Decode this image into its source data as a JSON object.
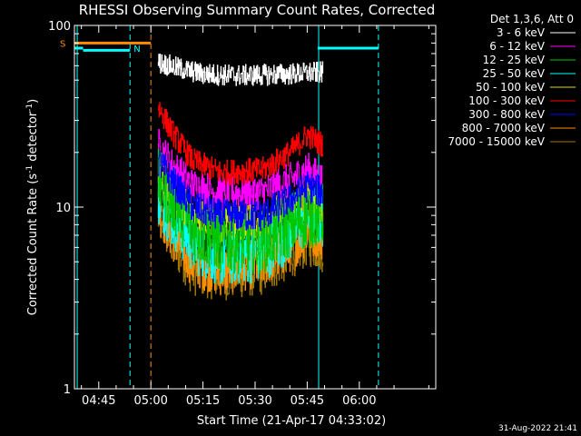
{
  "chart_data": {
    "type": "line",
    "title": "RHESSI Observing Summary Count Rates, Corrected",
    "xlabel": "Start Time (21-Apr-17 04:33:02)",
    "ylabel": "Corrected Count Rate (s",
    "ylabel_sup1": "-1",
    "ylabel_mid": " detector",
    "ylabel_sup2": "-1",
    "ylabel_end": ")",
    "yscale": "log",
    "xlim_minutes": [
      -22,
      82
    ],
    "ylim": [
      1,
      100
    ],
    "x_ticks": [
      {
        "t": -15,
        "label": "04:45"
      },
      {
        "t": 0,
        "label": "05:00"
      },
      {
        "t": 15,
        "label": "05:15"
      },
      {
        "t": 30,
        "label": "05:30"
      },
      {
        "t": 45,
        "label": "05:45"
      },
      {
        "t": 60,
        "label": "06:00"
      }
    ],
    "y_ticks": [
      {
        "v": 1,
        "label": "1"
      },
      {
        "v": 10,
        "label": "10"
      },
      {
        "v": 100,
        "label": "100"
      }
    ],
    "legend_title": "Det 1,3,6, Att 0",
    "series": [
      {
        "name": "3 - 6 keV",
        "color": "#ffffff",
        "knots": [
          [
            3,
            62
          ],
          [
            8,
            58
          ],
          [
            15,
            54
          ],
          [
            25,
            53
          ],
          [
            40,
            54
          ],
          [
            47,
            55
          ],
          [
            49.5,
            55
          ]
        ],
        "noise": 0.06
      },
      {
        "name": "6 - 12 keV",
        "color": "#ff00ff",
        "knots": [
          [
            2,
            22
          ],
          [
            6,
            17
          ],
          [
            12,
            13
          ],
          [
            20,
            12
          ],
          [
            32,
            12
          ],
          [
            40,
            14
          ],
          [
            45,
            16
          ],
          [
            49.5,
            14
          ]
        ],
        "noise": 0.1
      },
      {
        "name": "12 - 25 keV",
        "color": "#00c800",
        "knots": [
          [
            2,
            14
          ],
          [
            6,
            11
          ],
          [
            12,
            7.5
          ],
          [
            20,
            6.5
          ],
          [
            32,
            6.5
          ],
          [
            40,
            8
          ],
          [
            45,
            9
          ],
          [
            49.5,
            9
          ]
        ],
        "noise": 0.18
      },
      {
        "name": "25 - 50 keV",
        "color": "#00ffff",
        "knots": [
          [
            2,
            12
          ],
          [
            6,
            9
          ],
          [
            12,
            6.5
          ],
          [
            20,
            5.5
          ],
          [
            32,
            5.8
          ],
          [
            40,
            7.5
          ],
          [
            45,
            9
          ],
          [
            49.5,
            9
          ]
        ],
        "noise": 0.18
      },
      {
        "name": "50 - 100 keV",
        "color": "#e0e000",
        "knots": [
          [
            2,
            15
          ],
          [
            6,
            12
          ],
          [
            12,
            9
          ],
          [
            20,
            8
          ],
          [
            32,
            8.5
          ],
          [
            40,
            10
          ],
          [
            45,
            11
          ],
          [
            49.5,
            10
          ]
        ],
        "noise": 0.1
      },
      {
        "name": "100 - 300 keV",
        "color": "#ff0000",
        "knots": [
          [
            2,
            36
          ],
          [
            6,
            26
          ],
          [
            12,
            18
          ],
          [
            20,
            15.5
          ],
          [
            32,
            16
          ],
          [
            40,
            20
          ],
          [
            45,
            25
          ],
          [
            49.5,
            22
          ]
        ],
        "noise": 0.07
      },
      {
        "name": "300 - 800 keV",
        "color": "#0000ff",
        "knots": [
          [
            2,
            18
          ],
          [
            6,
            14
          ],
          [
            12,
            10
          ],
          [
            20,
            9
          ],
          [
            32,
            9
          ],
          [
            40,
            11
          ],
          [
            45,
            13
          ],
          [
            49.5,
            12
          ]
        ],
        "noise": 0.09
      },
      {
        "name": "800 - 7000 keV",
        "color": "#ff8c00",
        "knots": [
          [
            2,
            10
          ],
          [
            6,
            7
          ],
          [
            12,
            5
          ],
          [
            20,
            4.5
          ],
          [
            32,
            5
          ],
          [
            40,
            6
          ],
          [
            45,
            7.5
          ],
          [
            49.5,
            7
          ]
        ],
        "noise": 0.14
      },
      {
        "name": "7000 - 15000 keV",
        "color": "#a07800",
        "knots": [
          [
            2,
            9
          ],
          [
            6,
            6.5
          ],
          [
            12,
            4.5
          ],
          [
            20,
            4.2
          ],
          [
            32,
            4.5
          ],
          [
            40,
            5.5
          ],
          [
            45,
            6.5
          ],
          [
            49.5,
            6
          ]
        ],
        "noise": 0.14
      }
    ],
    "saa_bar": {
      "label": "S",
      "color": "#ff8c00",
      "t0": -22,
      "t1": 0,
      "v": 80
    },
    "night_bars": [
      {
        "label": "N",
        "color": "#00ffff",
        "t0": -22,
        "t1": -19.5,
        "v": 75
      },
      {
        "label": "",
        "color": "#00ffff",
        "t0": -19.5,
        "t1": -6,
        "v": 73
      },
      {
        "label": "",
        "color": "#00ffff",
        "t0": 48,
        "t1": 65.5,
        "v": 75
      }
    ],
    "vlines": [
      {
        "t": -21.2,
        "color": "#00ffff",
        "dash": false
      },
      {
        "t": -6,
        "color": "#00ffff",
        "dash": true
      },
      {
        "t": 0,
        "color": "#ff8c00",
        "dash": true
      },
      {
        "t": 48.3,
        "color": "#00ffff",
        "dash": false
      },
      {
        "t": 65.5,
        "color": "#00ffff",
        "dash": true
      }
    ],
    "data_start": 2,
    "data_end": 49.5
  },
  "timestamp": "31-Aug-2022 21:41"
}
